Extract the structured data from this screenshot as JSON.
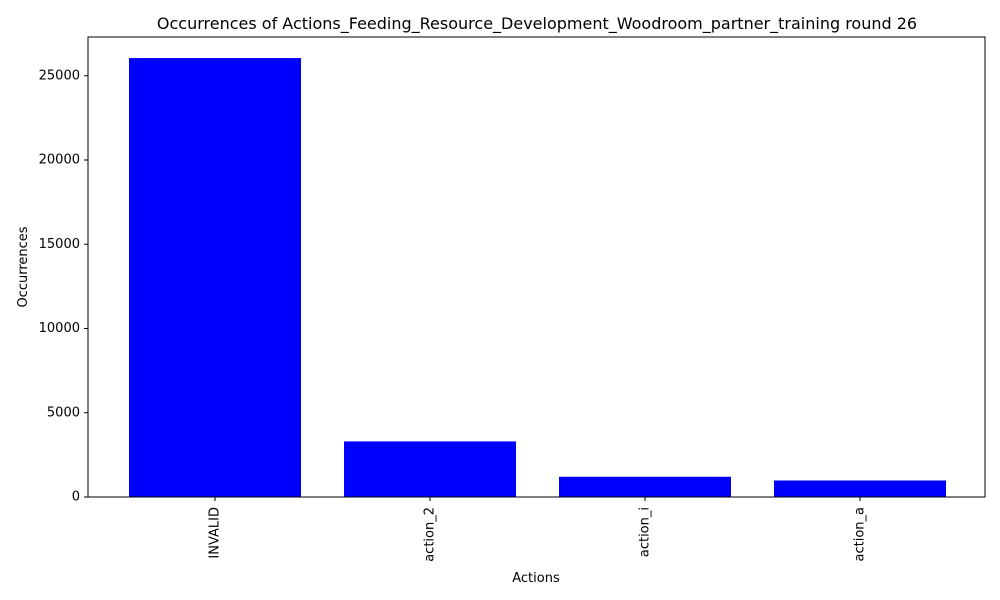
{
  "chart_data": {
    "type": "bar",
    "title": "Occurrences of Actions_Feeding_Resource_Development_Woodroom_partner_training round 26",
    "xlabel": "Actions",
    "ylabel": "Occurrences",
    "categories": [
      "INVALID",
      "action_2",
      "action_i",
      "action_a"
    ],
    "values": [
      26050,
      3300,
      1200,
      980
    ],
    "ylim": [
      0,
      27300
    ],
    "yticks": [
      0,
      5000,
      10000,
      15000,
      20000,
      25000
    ],
    "bar_color": "#0000ff",
    "grid": false,
    "legend": "none"
  }
}
